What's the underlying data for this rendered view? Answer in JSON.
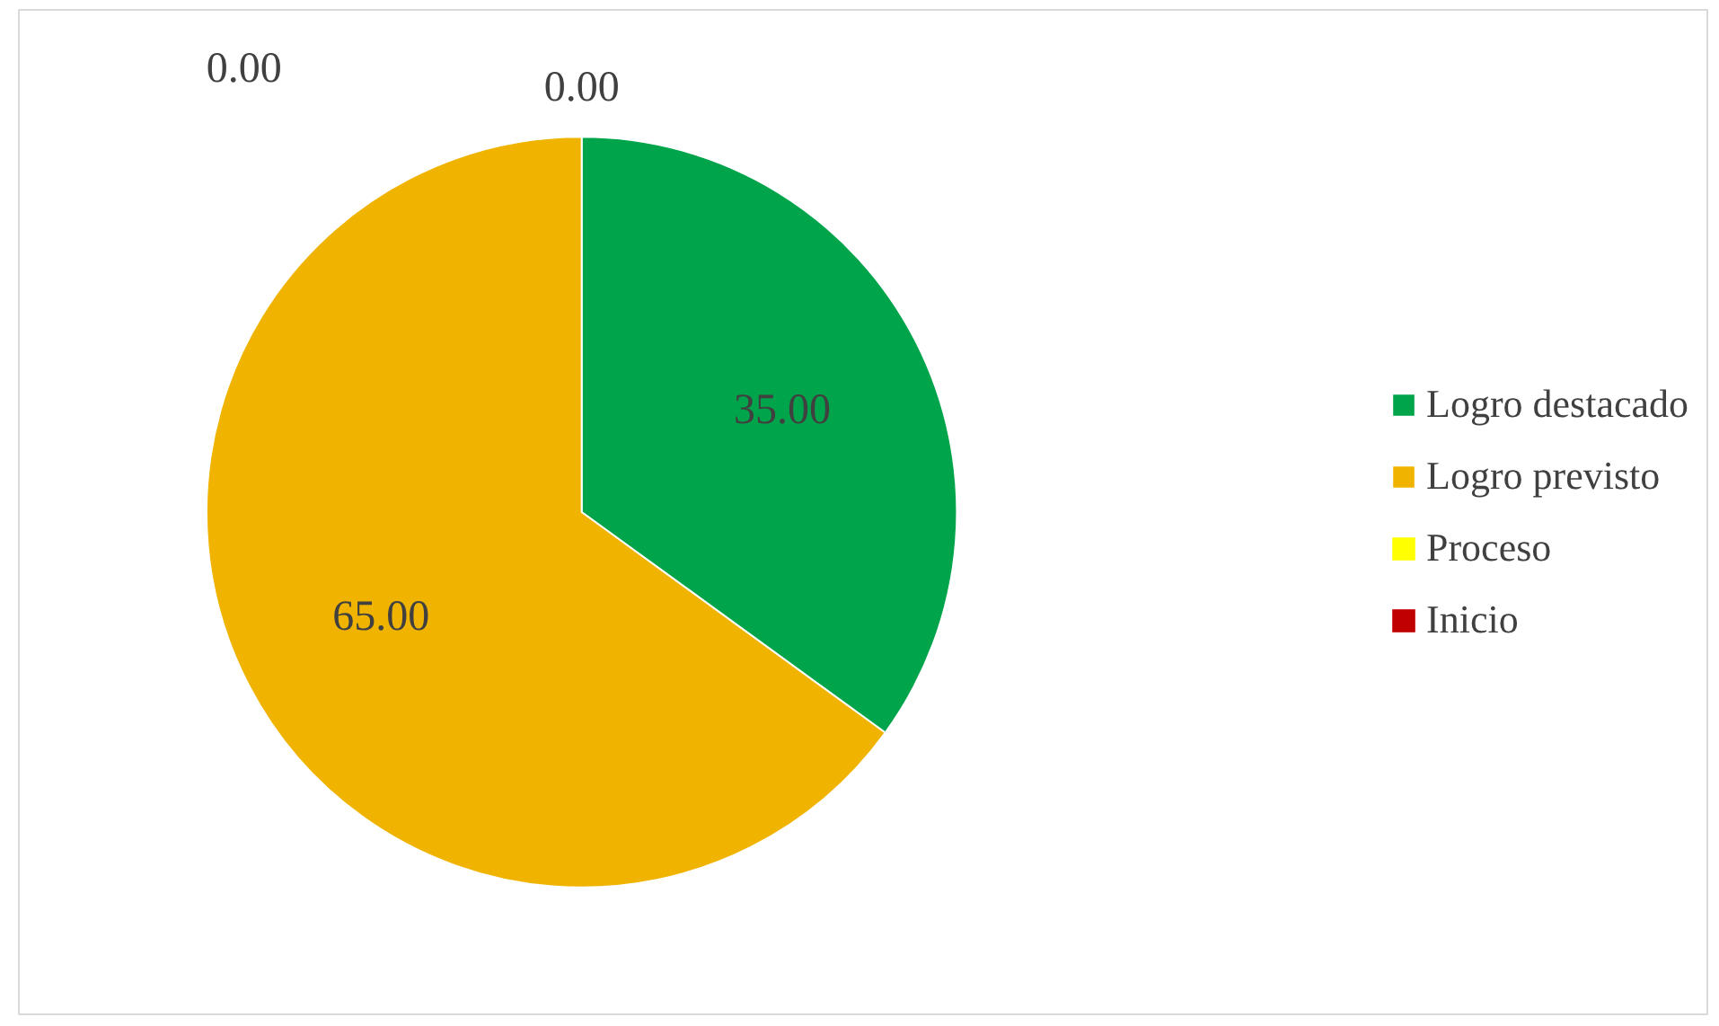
{
  "chart_data": {
    "type": "pie",
    "categories": [
      "Logro destacado",
      "Logro previsto",
      "Proceso",
      "Inicio"
    ],
    "values": [
      35,
      65,
      0,
      0
    ],
    "colors": [
      "#00a44a",
      "#f0b400",
      "#ffff00",
      "#c00000"
    ],
    "value_labels": [
      "35.00",
      "65.00",
      "0.00",
      "0.00"
    ],
    "legend": "right"
  }
}
